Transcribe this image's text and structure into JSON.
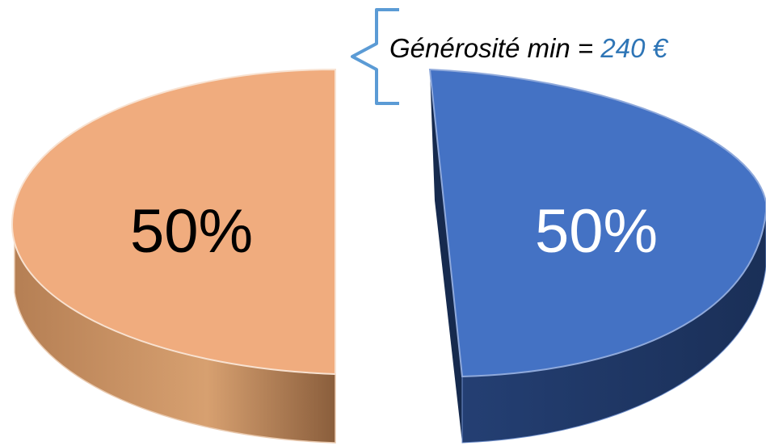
{
  "chart_data": {
    "type": "pie",
    "title": "",
    "style": "3d-exploded",
    "slices": [
      {
        "label": "50%",
        "value": 50,
        "color": "#4472C4",
        "side_color": "#1F3864",
        "label_color": "#FFFFFF"
      },
      {
        "label": "50%",
        "value": 50,
        "color": "#F0AC7E",
        "side_color": "#A0704A",
        "label_color": "#000000"
      }
    ],
    "annotation": {
      "prefix": "Générosité min = ",
      "amount": "240 €",
      "prefix_color": "#000000",
      "amount_color": "#2E75B6",
      "bracket_color": "#5B9BD5",
      "target": "blue-slice"
    },
    "legend": "none"
  }
}
